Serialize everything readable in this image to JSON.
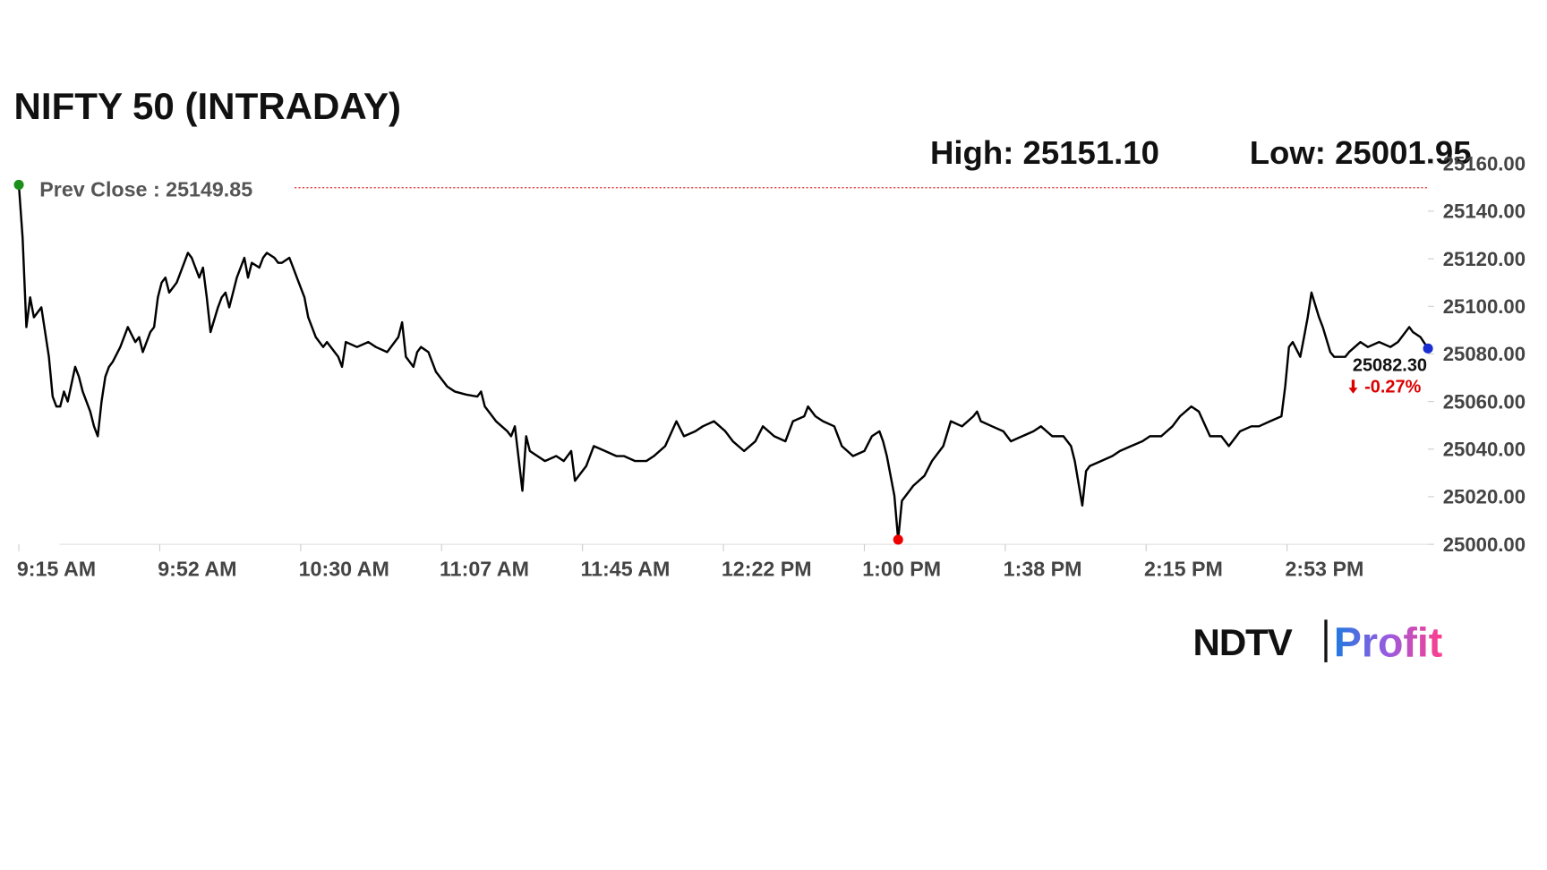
{
  "chart_data": {
    "type": "line",
    "title": "NIFTY 50 (INTRADAY)",
    "high_label": "High: 25151.10",
    "low_label": "Low: 25001.95",
    "prev_close": 25149.85,
    "prev_close_label": "Prev Close : 25149.85",
    "last_price_label": "25082.30",
    "change_label": "-0.27%",
    "color": "#000000",
    "x": [
      0,
      1,
      2,
      3,
      4,
      6,
      7,
      8,
      9,
      10,
      11,
      12,
      13,
      15,
      16,
      17,
      19,
      20,
      21,
      22,
      23,
      24,
      25,
      27,
      28,
      29,
      31,
      32,
      33,
      35,
      36,
      37,
      38,
      39,
      40,
      42,
      44,
      45,
      46,
      48,
      49,
      50,
      51,
      53,
      54,
      55,
      56,
      57,
      58,
      60,
      61,
      62,
      64,
      65,
      66,
      68,
      69,
      70,
      72,
      73,
      74,
      76,
      77,
      78,
      79,
      81,
      82,
      85,
      86,
      87,
      90,
      93,
      95,
      98,
      101,
      102,
      103,
      105,
      106,
      107,
      109,
      111,
      114,
      116,
      119,
      122,
      123,
      124,
      127,
      130,
      131,
      132,
      134,
      135,
      136,
      138,
      140,
      143,
      145,
      147,
      148,
      149,
      151,
      153,
      156,
      159,
      161,
      164,
      167,
      169,
      172,
      175,
      177,
      180,
      182,
      185,
      188,
      190,
      193,
      196,
      198,
      201,
      204,
      206,
      209,
      210,
      212,
      214,
      217,
      219,
      222,
      225,
      227,
      229,
      230,
      231,
      233,
      234,
      235,
      238,
      241,
      243,
      246,
      248,
      251,
      254,
      255,
      256,
      259,
      262,
      264,
      267,
      270,
      272,
      275,
      278,
      280,
      281,
      283,
      284,
      285,
      288,
      291,
      293,
      296,
      299,
      301,
      304,
      307,
      309,
      312,
      314,
      317,
      320,
      322,
      325,
      328,
      330,
      333,
      336,
      337,
      338,
      339,
      341,
      342,
      343,
      344,
      346,
      347,
      349,
      350,
      352,
      353,
      354,
      357,
      359,
      362,
      365,
      367,
      370,
      371,
      373,
      375
    ],
    "values": [
      25151.1,
      25128.8,
      25091.3,
      25103.8,
      25095.4,
      25099.6,
      25089.2,
      25078.8,
      25062.1,
      25057.9,
      25057.9,
      25064.2,
      25060.0,
      25074.6,
      25070.4,
      25064.2,
      25055.8,
      25049.6,
      25045.4,
      25060.0,
      25070.4,
      25074.6,
      25076.7,
      25082.9,
      25087.1,
      25091.3,
      25085.0,
      25087.1,
      25080.8,
      25089.2,
      25091.3,
      25103.8,
      25110.0,
      25112.1,
      25105.8,
      25110.0,
      25118.3,
      25122.5,
      25120.4,
      25112.1,
      25116.3,
      25103.8,
      25089.2,
      25099.6,
      25103.8,
      25105.8,
      25099.6,
      25105.8,
      25112.1,
      25120.4,
      25112.1,
      25118.3,
      25116.3,
      25120.4,
      25122.5,
      25120.4,
      25118.3,
      25118.3,
      25120.4,
      25116.3,
      25112.1,
      25103.8,
      25095.4,
      25091.3,
      25087.1,
      25082.9,
      25085.0,
      25078.8,
      25074.6,
      25085.0,
      25082.9,
      25085.0,
      25082.9,
      25080.8,
      25087.1,
      25093.3,
      25078.8,
      25074.6,
      25080.8,
      25082.9,
      25080.8,
      25072.5,
      25066.3,
      25064.2,
      25062.9,
      25062.1,
      25064.2,
      25057.9,
      25051.7,
      25047.5,
      25045.4,
      25049.6,
      25022.5,
      25045.4,
      25039.2,
      25037.1,
      25035.0,
      25037.1,
      25035.0,
      25039.2,
      25026.7,
      25028.8,
      25032.9,
      25041.3,
      25039.2,
      25037.1,
      25037.1,
      25035.0,
      25035.0,
      25037.1,
      25041.3,
      25051.7,
      25045.4,
      25047.5,
      25049.6,
      25051.7,
      25047.5,
      25043.3,
      25039.2,
      25043.3,
      25049.6,
      25045.4,
      25043.3,
      25051.7,
      25053.8,
      25057.9,
      25053.8,
      25051.7,
      25049.6,
      25041.3,
      25037.1,
      25039.2,
      25045.4,
      25047.5,
      25043.3,
      25037.1,
      25020.4,
      25001.95,
      25018.3,
      25024.6,
      25028.8,
      25035.0,
      25041.3,
      25051.7,
      25049.6,
      25053.8,
      25055.8,
      25051.7,
      25049.6,
      25047.5,
      25043.3,
      25045.4,
      25047.5,
      25049.6,
      25045.4,
      25045.4,
      25041.3,
      25035.0,
      25016.3,
      25030.8,
      25032.9,
      25035.0,
      25037.1,
      25039.2,
      25041.3,
      25043.3,
      25045.4,
      25045.4,
      25049.6,
      25053.8,
      25057.9,
      25055.8,
      25045.4,
      25045.4,
      25041.3,
      25047.5,
      25049.6,
      25049.6,
      25051.7,
      25053.8,
      25066.3,
      25082.9,
      25085.0,
      25078.8,
      25087.1,
      25095.4,
      25105.8,
      25095.4,
      25091.3,
      25080.8,
      25078.8,
      25078.8,
      25078.8,
      25080.8,
      25085.0,
      25082.9,
      25085.0,
      25082.9,
      25085.0,
      25091.3,
      25089.2,
      25087.1,
      25082.3
    ],
    "xlim": [
      0,
      375
    ],
    "xticks": [
      {
        "value": 0,
        "label": "9:15 AM"
      },
      {
        "value": 37.5,
        "label": "9:52 AM"
      },
      {
        "value": 75,
        "label": "10:30 AM"
      },
      {
        "value": 112.5,
        "label": "11:07 AM"
      },
      {
        "value": 150,
        "label": "11:45 AM"
      },
      {
        "value": 187.5,
        "label": "12:22 PM"
      },
      {
        "value": 225,
        "label": "1:00 PM"
      },
      {
        "value": 262.5,
        "label": "1:38 PM"
      },
      {
        "value": 300,
        "label": "2:15 PM"
      },
      {
        "value": 337.5,
        "label": "2:53 PM"
      }
    ],
    "ylim": [
      25000,
      25160
    ],
    "yticks": [
      {
        "value": 25000,
        "label": "25000.00"
      },
      {
        "value": 25020,
        "label": "25020.00"
      },
      {
        "value": 25040,
        "label": "25040.00"
      },
      {
        "value": 25060,
        "label": "25060.00"
      },
      {
        "value": 25080,
        "label": "25080.00"
      },
      {
        "value": 25100,
        "label": "25100.00"
      },
      {
        "value": 25120,
        "label": "25120.00"
      },
      {
        "value": 25140,
        "label": "25140.00"
      },
      {
        "value": 25160,
        "label": "25160.00"
      }
    ]
  },
  "brand": {
    "left": "NDTV",
    "right": "Profit"
  }
}
